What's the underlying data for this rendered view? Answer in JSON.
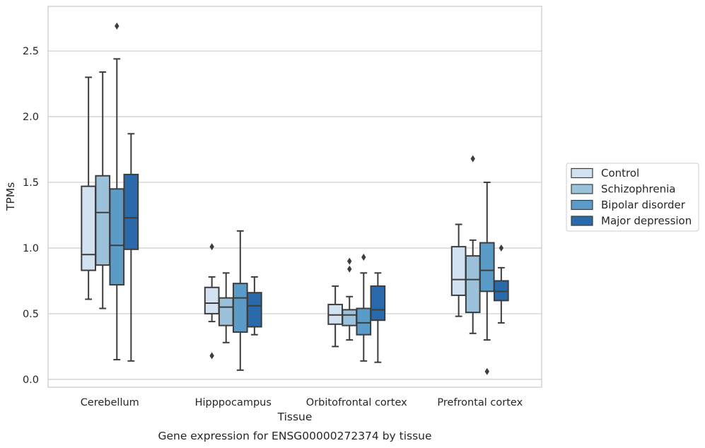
{
  "caption": "Gene expression for ENSG00000272374 by tissue",
  "chart_data": {
    "type": "box",
    "xlabel": "Tissue",
    "ylabel": "TPMs",
    "ylim": [
      -0.06,
      2.84
    ],
    "yticks": [
      0.0,
      0.5,
      1.0,
      1.5,
      2.0,
      2.5
    ],
    "ytick_labels": [
      "0.0",
      "0.5",
      "1.0",
      "1.5",
      "2.0",
      "2.5"
    ],
    "grid": "horizontal",
    "legend_position": "right",
    "categories": [
      "Cerebellum",
      "Hipppocampus",
      "Orbitofrontal cortex",
      "Prefrontal cortex"
    ],
    "series": [
      {
        "name": "Control",
        "color": "#d3e2f1",
        "boxes": [
          {
            "min": 0.61,
            "q1": 0.83,
            "median": 0.95,
            "q3": 1.47,
            "max": 2.3,
            "outliers": []
          },
          {
            "min": 0.44,
            "q1": 0.5,
            "median": 0.58,
            "q3": 0.7,
            "max": 0.78,
            "outliers": [
              1.01,
              0.18
            ]
          },
          {
            "min": 0.25,
            "q1": 0.42,
            "median": 0.49,
            "q3": 0.57,
            "max": 0.71,
            "outliers": []
          },
          {
            "min": 0.48,
            "q1": 0.64,
            "median": 0.76,
            "q3": 1.01,
            "max": 1.18,
            "outliers": []
          }
        ]
      },
      {
        "name": "Schizophrenia",
        "color": "#9cc2db",
        "boxes": [
          {
            "min": 0.54,
            "q1": 0.87,
            "median": 1.27,
            "q3": 1.55,
            "max": 2.34,
            "outliers": []
          },
          {
            "min": 0.28,
            "q1": 0.41,
            "median": 0.55,
            "q3": 0.62,
            "max": 0.81,
            "outliers": []
          },
          {
            "min": 0.3,
            "q1": 0.41,
            "median": 0.49,
            "q3": 0.53,
            "max": 0.63,
            "outliers": [
              0.9,
              0.84
            ]
          },
          {
            "min": 0.35,
            "q1": 0.51,
            "median": 0.76,
            "q3": 0.94,
            "max": 1.06,
            "outliers": [
              1.68
            ]
          }
        ]
      },
      {
        "name": "Bipolar disorder",
        "color": "#5a9bc8",
        "boxes": [
          {
            "min": 0.15,
            "q1": 0.72,
            "median": 1.02,
            "q3": 1.45,
            "max": 2.44,
            "outliers": [
              2.69
            ]
          },
          {
            "min": 0.07,
            "q1": 0.36,
            "median": 0.62,
            "q3": 0.73,
            "max": 1.13,
            "outliers": []
          },
          {
            "min": 0.14,
            "q1": 0.34,
            "median": 0.43,
            "q3": 0.54,
            "max": 0.81,
            "outliers": [
              0.93
            ]
          },
          {
            "min": 0.3,
            "q1": 0.67,
            "median": 0.83,
            "q3": 1.04,
            "max": 1.5,
            "outliers": [
              0.06
            ]
          }
        ]
      },
      {
        "name": "Major depression",
        "color": "#2a6aab",
        "boxes": [
          {
            "min": 0.14,
            "q1": 0.99,
            "median": 1.23,
            "q3": 1.56,
            "max": 1.87,
            "outliers": []
          },
          {
            "min": 0.34,
            "q1": 0.4,
            "median": 0.56,
            "q3": 0.66,
            "max": 0.78,
            "outliers": []
          },
          {
            "min": 0.13,
            "q1": 0.45,
            "median": 0.53,
            "q3": 0.71,
            "max": 0.81,
            "outliers": []
          },
          {
            "min": 0.43,
            "q1": 0.6,
            "median": 0.67,
            "q3": 0.75,
            "max": 0.85,
            "outliers": [
              1.0
            ]
          }
        ]
      }
    ]
  }
}
